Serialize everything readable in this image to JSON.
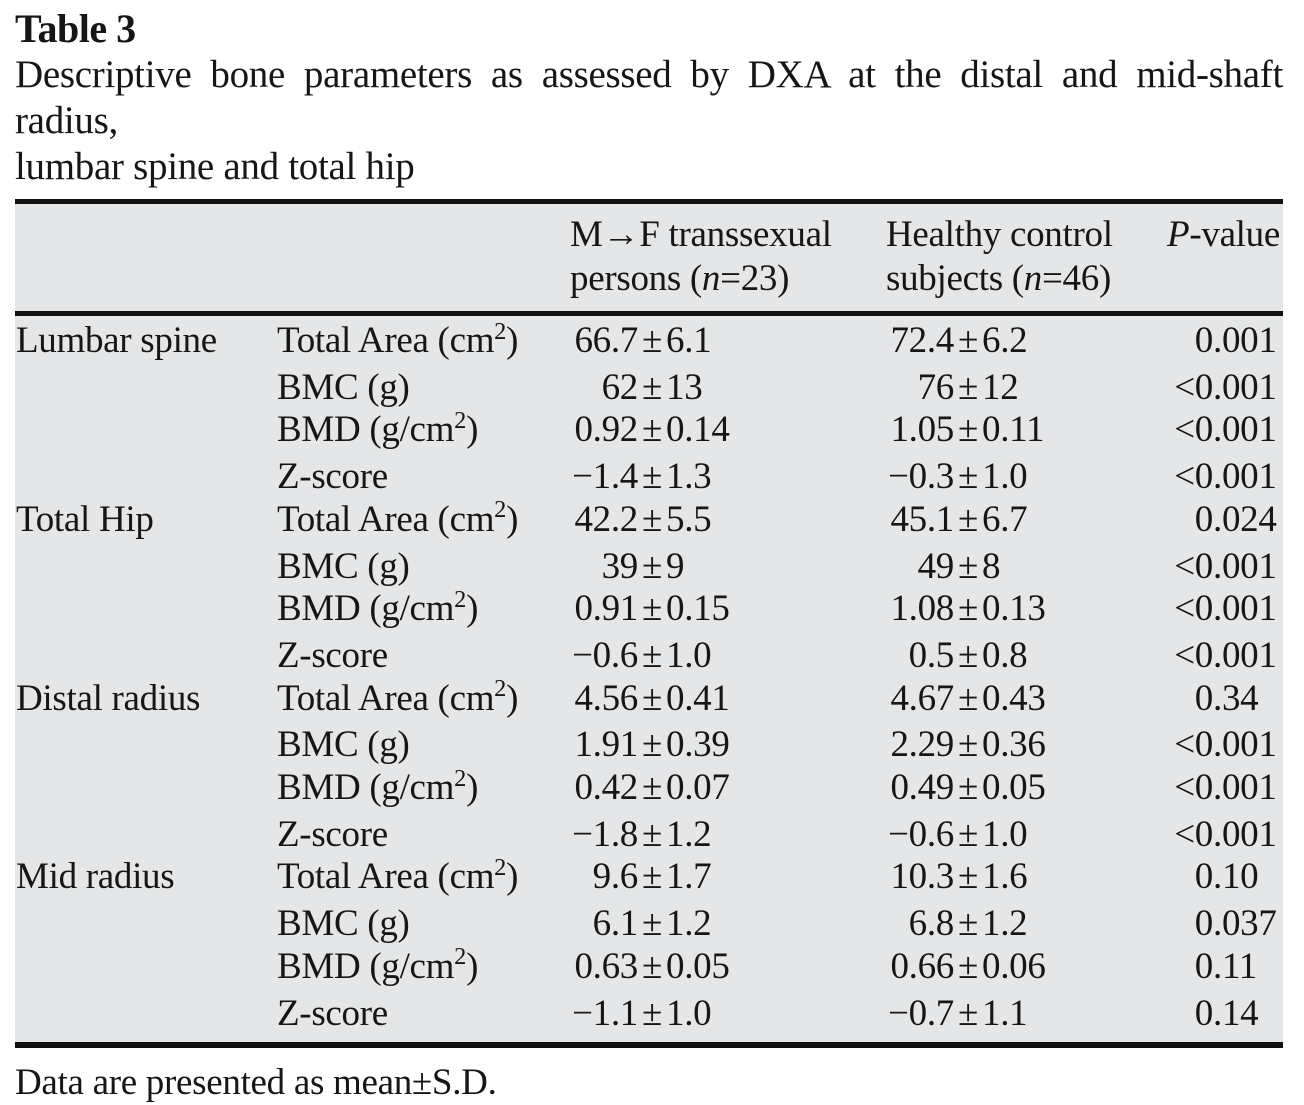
{
  "page": {
    "title": "Table 3",
    "caption_line1": "Descriptive bone parameters as assessed by DXA at the distal and mid-shaft radius,",
    "caption_line2": "lumbar spine and total hip",
    "footnote": "Data are presented as mean±S.D."
  },
  "colors": {
    "table_background": "#e5e6e7",
    "rule": "#111111",
    "text": "#161616",
    "page_background": "#ffffff"
  },
  "table": {
    "header": {
      "group1": {
        "line1": "M→F transsexual",
        "line2_pre": "persons (",
        "n": "n",
        "line2_post": "=23)"
      },
      "group2": {
        "line1": "Healthy control",
        "line2_pre": "subjects (",
        "n": "n",
        "line2_post": "=46)"
      },
      "p": {
        "italic": "P",
        "rest": "-value"
      }
    },
    "groups": [
      {
        "region": "Lumbar spine",
        "rows": [
          {
            "parameter": "Total Area (cm²)",
            "group1": "66.7±6.1",
            "group2": "72.4±6.2",
            "p": "0.001"
          },
          {
            "parameter": "BMC (g)",
            "group1": "62±13",
            "group2": "76±12",
            "p": "<0.001"
          },
          {
            "parameter": "BMD (g/cm²)",
            "group1": "0.92±0.14",
            "group2": "1.05±0.11",
            "p": "<0.001"
          },
          {
            "parameter": "Z-score",
            "group1": "−1.4±1.3",
            "group2": "−0.3±1.0",
            "p": "<0.001"
          }
        ]
      },
      {
        "region": "Total Hip",
        "rows": [
          {
            "parameter": "Total Area (cm²)",
            "group1": "42.2±5.5",
            "group2": "45.1±6.7",
            "p": "0.024"
          },
          {
            "parameter": "BMC (g)",
            "group1": "39±9",
            "group2": "49±8",
            "p": "<0.001"
          },
          {
            "parameter": "BMD (g/cm²)",
            "group1": "0.91±0.15",
            "group2": "1.08±0.13",
            "p": "<0.001"
          },
          {
            "parameter": "Z-score",
            "group1": "−0.6±1.0",
            "group2": "0.5±0.8",
            "p": "<0.001"
          }
        ]
      },
      {
        "region": "Distal radius",
        "rows": [
          {
            "parameter": "Total Area (cm²)",
            "group1": "4.56±0.41",
            "group2": "4.67±0.43",
            "p": "0.34"
          },
          {
            "parameter": "BMC (g)",
            "group1": "1.91±0.39",
            "group2": "2.29±0.36",
            "p": "<0.001"
          },
          {
            "parameter": "BMD (g/cm²)",
            "group1": "0.42±0.07",
            "group2": "0.49±0.05",
            "p": "<0.001"
          },
          {
            "parameter": "Z-score",
            "group1": "−1.8±1.2",
            "group2": "−0.6±1.0",
            "p": "<0.001"
          }
        ]
      },
      {
        "region": "Mid radius",
        "rows": [
          {
            "parameter": "Total Area (cm²)",
            "group1": "9.6±1.7",
            "group2": "10.3±1.6",
            "p": "0.10"
          },
          {
            "parameter": "BMC (g)",
            "group1": "6.1±1.2",
            "group2": "6.8±1.2",
            "p": "0.037"
          },
          {
            "parameter": "BMD (g/cm²)",
            "group1": "0.63±0.05",
            "group2": "0.66±0.06",
            "p": "0.11"
          },
          {
            "parameter": "Z-score",
            "group1": "−1.1±1.0",
            "group2": "−0.7±1.1",
            "p": "0.14"
          }
        ]
      }
    ]
  }
}
